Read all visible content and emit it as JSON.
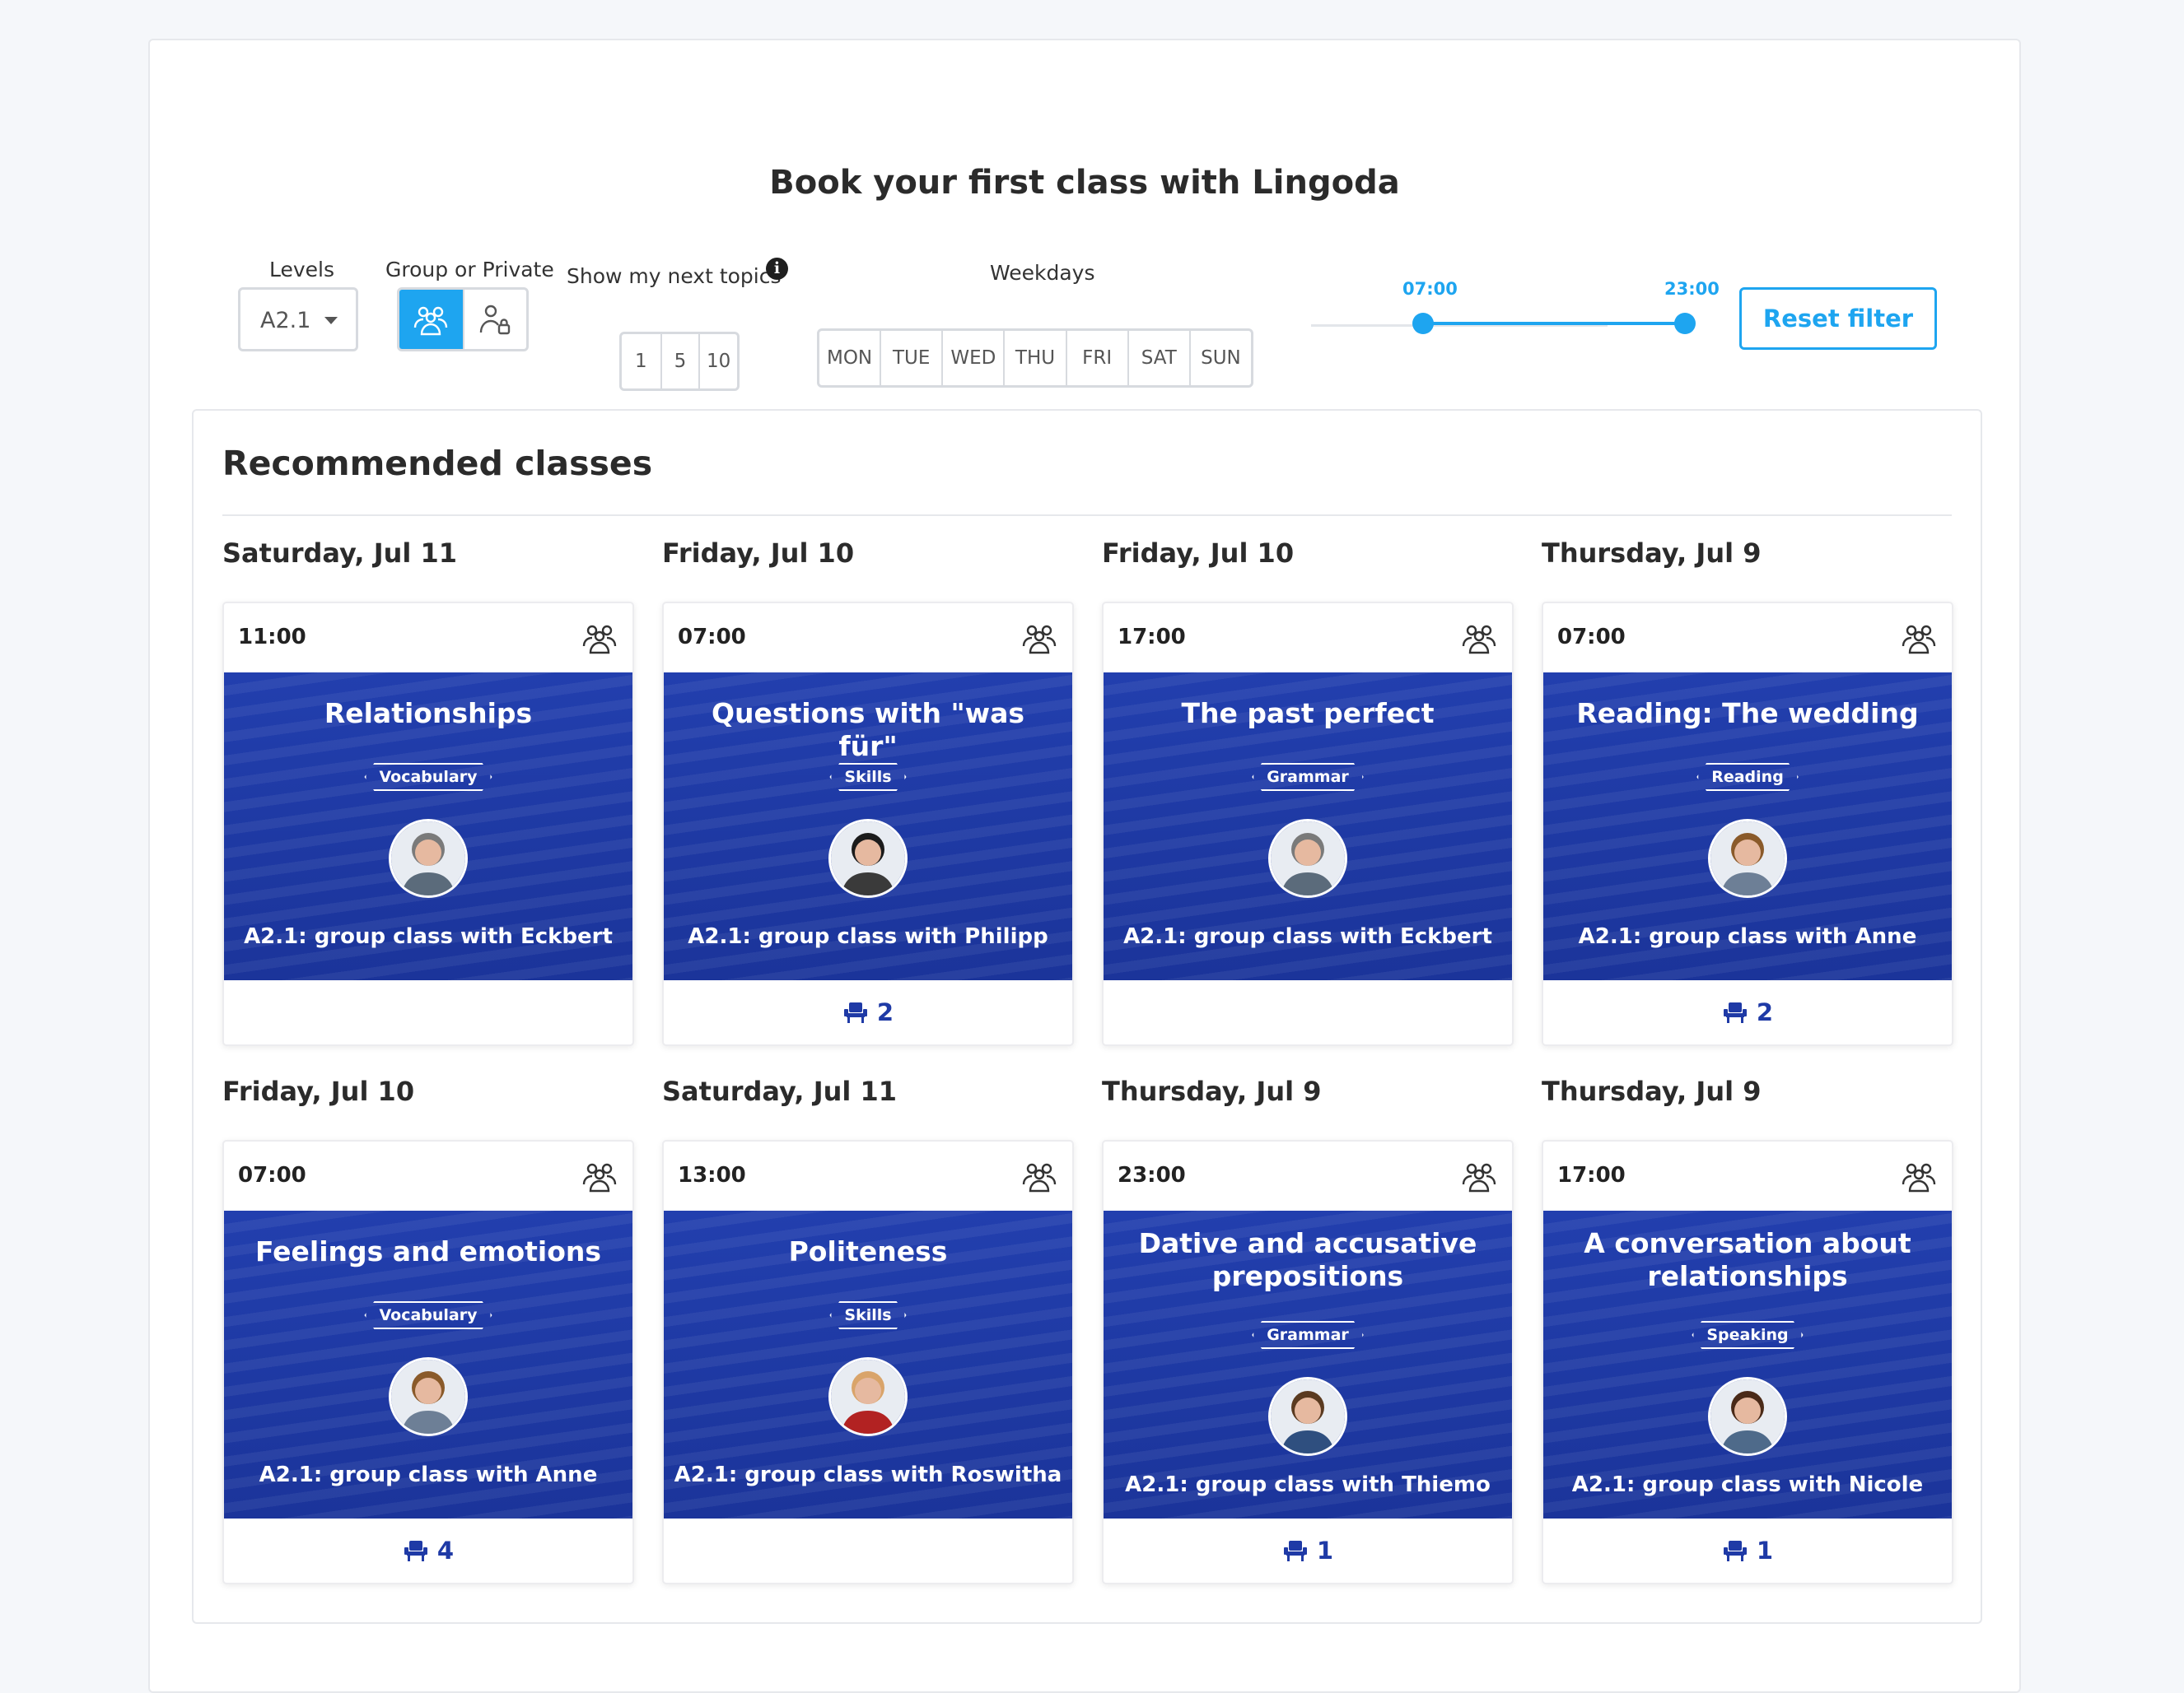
{
  "page": {
    "title": "Book your first class with Lingoda"
  },
  "filters": {
    "levels_label": "Levels",
    "level_value": "A2.1",
    "group_private_label": "Group or Private",
    "topics_label": "Show my next topics",
    "topics_options": [
      "1",
      "5",
      "10"
    ],
    "weekdays_label": "Weekdays",
    "weekdays": [
      "MON",
      "TUE",
      "WED",
      "THU",
      "FRI",
      "SAT",
      "SUN"
    ],
    "time_start": "07:00",
    "time_end": "23:00",
    "reset_label": "Reset filter"
  },
  "colors": {
    "accent": "#1ea5f0",
    "banner": "#1f3aa6"
  },
  "recommended": {
    "title": "Recommended classes",
    "classes": [
      {
        "date": "Saturday, Jul 11",
        "time": "11:00",
        "title": "Relationships",
        "tag": "Vocabulary",
        "teacher": "A2.1: group class with Eckbert",
        "seats": ""
      },
      {
        "date": "Friday, Jul 10",
        "time": "07:00",
        "title": "Questions with \"was für\"",
        "tag": "Skills",
        "teacher": "A2.1: group class with Philipp",
        "seats": "2"
      },
      {
        "date": "Friday, Jul 10",
        "time": "17:00",
        "title": "The past perfect",
        "tag": "Grammar",
        "teacher": "A2.1: group class with Eckbert",
        "seats": ""
      },
      {
        "date": "Thursday, Jul 9",
        "time": "07:00",
        "title": "Reading: The wedding",
        "tag": "Reading",
        "teacher": "A2.1: group class with Anne",
        "seats": "2"
      },
      {
        "date": "Friday, Jul 10",
        "time": "07:00",
        "title": "Feelings and emotions",
        "tag": "Vocabulary",
        "teacher": "A2.1: group class with Anne",
        "seats": "4"
      },
      {
        "date": "Saturday, Jul 11",
        "time": "13:00",
        "title": "Politeness",
        "tag": "Skills",
        "teacher": "A2.1: group class with Roswitha",
        "seats": ""
      },
      {
        "date": "Thursday, Jul 9",
        "time": "23:00",
        "title": "Dative and accusative prepositions",
        "tag": "Grammar",
        "teacher": "A2.1: group class with Thiemo",
        "seats": "1"
      },
      {
        "date": "Thursday, Jul 9",
        "time": "17:00",
        "title": "A conversation about relationships",
        "tag": "Speaking",
        "teacher": "A2.1: group class with Nicole",
        "seats": "1"
      }
    ]
  }
}
